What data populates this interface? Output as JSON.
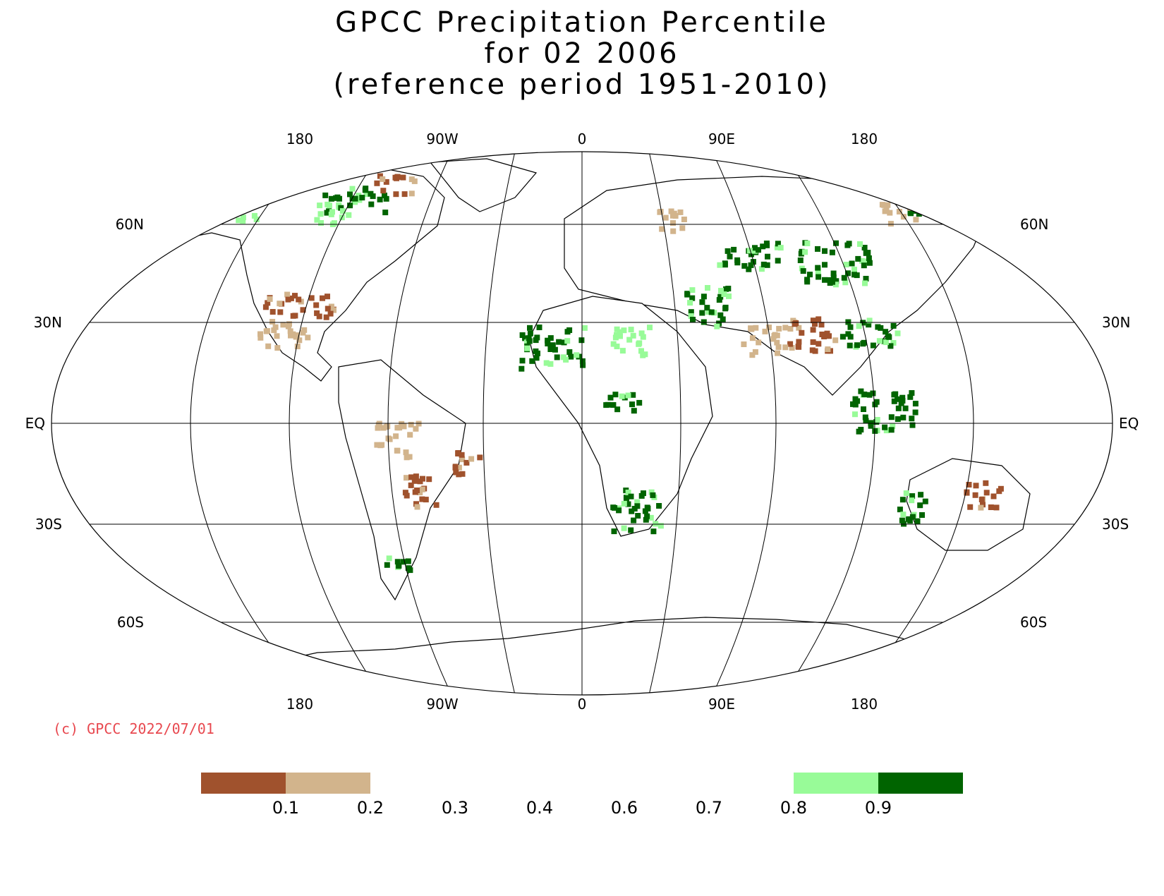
{
  "title": {
    "line1": "GPCC Precipitation Percentile",
    "line2": "for 02 2006",
    "line3": "(reference period 1951-2010)"
  },
  "map": {
    "projection": "robinson-like",
    "lon_labels_top": [
      "180",
      "90W",
      "0",
      "90E",
      "180"
    ],
    "lon_labels_bottom": [
      "180",
      "90W",
      "0",
      "90E",
      "180"
    ],
    "lat_labels_left": [
      "60N",
      "30N",
      "EQ",
      "30S",
      "60S"
    ],
    "lat_labels_right": [
      "60N",
      "30N",
      "EQ",
      "30S",
      "60S"
    ],
    "colors": {
      "very_dry": "#a0522d",
      "dry": "#d2b48c",
      "wet": "#98fb98",
      "very_wet": "#006400"
    }
  },
  "copyright": "(c) GPCC 2022/07/01",
  "legend": {
    "labels": [
      "0.1",
      "0.2",
      "0.3",
      "0.4",
      "0.6",
      "0.7",
      "0.8",
      "0.9"
    ],
    "swatches": [
      {
        "color": "#a0522d"
      },
      {
        "color": "#d2b48c"
      },
      {
        "color": null
      },
      {
        "color": null
      },
      {
        "color": null
      },
      {
        "color": null
      },
      {
        "color": null
      },
      {
        "color": "#98fb98"
      },
      {
        "color": "#006400"
      }
    ]
  }
}
